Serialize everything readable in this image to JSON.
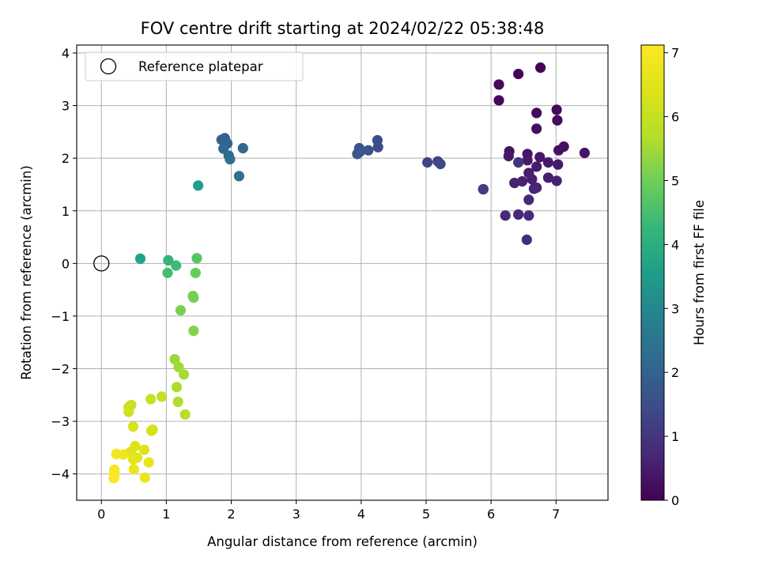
{
  "chart_data": {
    "type": "scatter",
    "title": "FOV centre drift starting at 2024/02/22 05:38:48",
    "xlabel": "Angular distance from reference (arcmin)",
    "ylabel": "Rotation from reference (arcmin)",
    "xlim": [
      -0.38,
      7.8
    ],
    "ylim": [
      -4.5,
      4.15
    ],
    "xticks": [
      0,
      1,
      2,
      3,
      4,
      5,
      6,
      7
    ],
    "yticks": [
      -4,
      -3,
      -2,
      -1,
      0,
      1,
      2,
      3,
      4
    ],
    "xtick_labels": [
      "0",
      "1",
      "2",
      "3",
      "4",
      "5",
      "6",
      "7"
    ],
    "ytick_labels": [
      "−4",
      "−3",
      "−2",
      "−1",
      "0",
      "1",
      "2",
      "3",
      "4"
    ],
    "grid": true,
    "legend": {
      "placement": "upper-left",
      "entries": [
        {
          "label": "Reference platepar",
          "marker": "open-circle"
        }
      ]
    },
    "reference_point": {
      "x": 0,
      "y": 0
    },
    "colorbar": {
      "label": "Hours from first FF file",
      "colormap": "viridis",
      "range": [
        0,
        7.12
      ],
      "ticks": [
        0,
        1,
        2,
        3,
        4,
        5,
        6,
        7
      ],
      "tick_labels": [
        "0",
        "1",
        "2",
        "3",
        "4",
        "5",
        "6",
        "7"
      ]
    },
    "points": [
      {
        "x": 6.76,
        "y": 3.72,
        "t": 0.05
      },
      {
        "x": 6.42,
        "y": 3.6,
        "t": 0.1
      },
      {
        "x": 6.12,
        "y": 3.4,
        "t": 0.12
      },
      {
        "x": 6.12,
        "y": 3.1,
        "t": 0.15
      },
      {
        "x": 7.01,
        "y": 2.92,
        "t": 0.18
      },
      {
        "x": 6.7,
        "y": 2.86,
        "t": 0.2
      },
      {
        "x": 7.02,
        "y": 2.72,
        "t": 0.22
      },
      {
        "x": 6.7,
        "y": 2.56,
        "t": 0.25
      },
      {
        "x": 7.12,
        "y": 2.22,
        "t": 0.28
      },
      {
        "x": 7.04,
        "y": 2.15,
        "t": 0.3
      },
      {
        "x": 6.28,
        "y": 2.13,
        "t": 0.32
      },
      {
        "x": 7.44,
        "y": 2.1,
        "t": 0.35
      },
      {
        "x": 6.56,
        "y": 2.08,
        "t": 0.36
      },
      {
        "x": 6.27,
        "y": 2.04,
        "t": 0.38
      },
      {
        "x": 6.75,
        "y": 2.02,
        "t": 0.4
      },
      {
        "x": 6.56,
        "y": 1.96,
        "t": 0.42
      },
      {
        "x": 6.88,
        "y": 1.92,
        "t": 0.45
      },
      {
        "x": 7.03,
        "y": 1.88,
        "t": 0.48
      },
      {
        "x": 6.7,
        "y": 1.84,
        "t": 0.5
      },
      {
        "x": 6.58,
        "y": 1.72,
        "t": 0.52
      },
      {
        "x": 6.88,
        "y": 1.63,
        "t": 0.54
      },
      {
        "x": 6.63,
        "y": 1.6,
        "t": 0.56
      },
      {
        "x": 7.01,
        "y": 1.57,
        "t": 0.58
      },
      {
        "x": 6.48,
        "y": 1.56,
        "t": 0.6
      },
      {
        "x": 6.36,
        "y": 1.53,
        "t": 0.62
      },
      {
        "x": 6.7,
        "y": 1.44,
        "t": 0.64
      },
      {
        "x": 6.66,
        "y": 1.42,
        "t": 0.66
      },
      {
        "x": 5.88,
        "y": 1.41,
        "t": 0.68
      },
      {
        "x": 6.58,
        "y": 1.21,
        "t": 0.7
      },
      {
        "x": 6.22,
        "y": 0.91,
        "t": 0.72
      },
      {
        "x": 6.42,
        "y": 0.93,
        "t": 0.74
      },
      {
        "x": 6.58,
        "y": 0.91,
        "t": 0.76
      },
      {
        "x": 6.55,
        "y": 0.45,
        "t": 0.78
      },
      {
        "x": 6.42,
        "y": 1.92,
        "t": 0.95
      },
      {
        "x": 5.88,
        "y": 1.41,
        "t": 1.15
      },
      {
        "x": 5.02,
        "y": 1.92,
        "t": 1.3
      },
      {
        "x": 5.18,
        "y": 1.94,
        "t": 1.35
      },
      {
        "x": 5.22,
        "y": 1.89,
        "t": 1.4
      },
      {
        "x": 4.25,
        "y": 2.34,
        "t": 1.5
      },
      {
        "x": 4.26,
        "y": 2.21,
        "t": 1.55
      },
      {
        "x": 3.97,
        "y": 2.19,
        "t": 1.6
      },
      {
        "x": 4.11,
        "y": 2.15,
        "t": 1.65
      },
      {
        "x": 3.98,
        "y": 2.12,
        "t": 1.7
      },
      {
        "x": 3.94,
        "y": 2.08,
        "t": 1.75
      },
      {
        "x": 1.9,
        "y": 2.38,
        "t": 2.0
      },
      {
        "x": 1.85,
        "y": 2.35,
        "t": 2.05
      },
      {
        "x": 1.94,
        "y": 2.28,
        "t": 2.1
      },
      {
        "x": 2.18,
        "y": 2.19,
        "t": 2.15
      },
      {
        "x": 1.88,
        "y": 2.18,
        "t": 2.2
      },
      {
        "x": 1.96,
        "y": 2.05,
        "t": 2.25
      },
      {
        "x": 1.98,
        "y": 1.98,
        "t": 2.3
      },
      {
        "x": 2.12,
        "y": 1.66,
        "t": 2.4
      },
      {
        "x": 1.49,
        "y": 1.48,
        "t": 3.6
      },
      {
        "x": 0.6,
        "y": 0.09,
        "t": 3.7
      },
      {
        "x": 1.03,
        "y": 0.06,
        "t": 4.2
      },
      {
        "x": 1.15,
        "y": -0.04,
        "t": 4.4
      },
      {
        "x": 1.02,
        "y": -0.18,
        "t": 4.45
      },
      {
        "x": 1.47,
        "y": 0.1,
        "t": 4.7
      },
      {
        "x": 1.45,
        "y": -0.18,
        "t": 4.9
      },
      {
        "x": 1.41,
        "y": -0.62,
        "t": 5.0
      },
      {
        "x": 1.42,
        "y": -0.65,
        "t": 5.05
      },
      {
        "x": 1.22,
        "y": -0.89,
        "t": 5.1
      },
      {
        "x": 1.42,
        "y": -1.28,
        "t": 5.2
      },
      {
        "x": 1.13,
        "y": -1.82,
        "t": 5.45
      },
      {
        "x": 1.19,
        "y": -1.97,
        "t": 5.5
      },
      {
        "x": 1.27,
        "y": -2.11,
        "t": 5.55
      },
      {
        "x": 1.16,
        "y": -2.35,
        "t": 5.6
      },
      {
        "x": 1.18,
        "y": -2.63,
        "t": 5.65
      },
      {
        "x": 1.29,
        "y": -2.87,
        "t": 5.75
      },
      {
        "x": 0.93,
        "y": -2.53,
        "t": 5.95
      },
      {
        "x": 0.76,
        "y": -2.58,
        "t": 6.0
      },
      {
        "x": 0.46,
        "y": -2.69,
        "t": 6.05
      },
      {
        "x": 0.42,
        "y": -2.73,
        "t": 6.1
      },
      {
        "x": 0.42,
        "y": -2.82,
        "t": 6.15
      },
      {
        "x": 0.79,
        "y": -3.16,
        "t": 6.2
      },
      {
        "x": 0.77,
        "y": -3.18,
        "t": 6.25
      },
      {
        "x": 0.49,
        "y": -3.1,
        "t": 6.3
      },
      {
        "x": 0.52,
        "y": -3.47,
        "t": 6.4
      },
      {
        "x": 0.66,
        "y": -3.54,
        "t": 6.45
      },
      {
        "x": 0.45,
        "y": -3.58,
        "t": 6.5
      },
      {
        "x": 0.55,
        "y": -3.69,
        "t": 6.55
      },
      {
        "x": 0.49,
        "y": -3.72,
        "t": 6.6
      },
      {
        "x": 0.73,
        "y": -3.78,
        "t": 6.65
      },
      {
        "x": 0.5,
        "y": -3.91,
        "t": 6.7
      },
      {
        "x": 0.67,
        "y": -4.07,
        "t": 6.72
      },
      {
        "x": 0.34,
        "y": -3.63,
        "t": 6.8
      },
      {
        "x": 0.23,
        "y": -3.62,
        "t": 6.9
      },
      {
        "x": 0.2,
        "y": -3.92,
        "t": 7.0
      },
      {
        "x": 0.2,
        "y": -3.97,
        "t": 7.03
      },
      {
        "x": 0.2,
        "y": -4.06,
        "t": 7.06
      },
      {
        "x": 0.19,
        "y": -4.08,
        "t": 7.1
      }
    ]
  }
}
